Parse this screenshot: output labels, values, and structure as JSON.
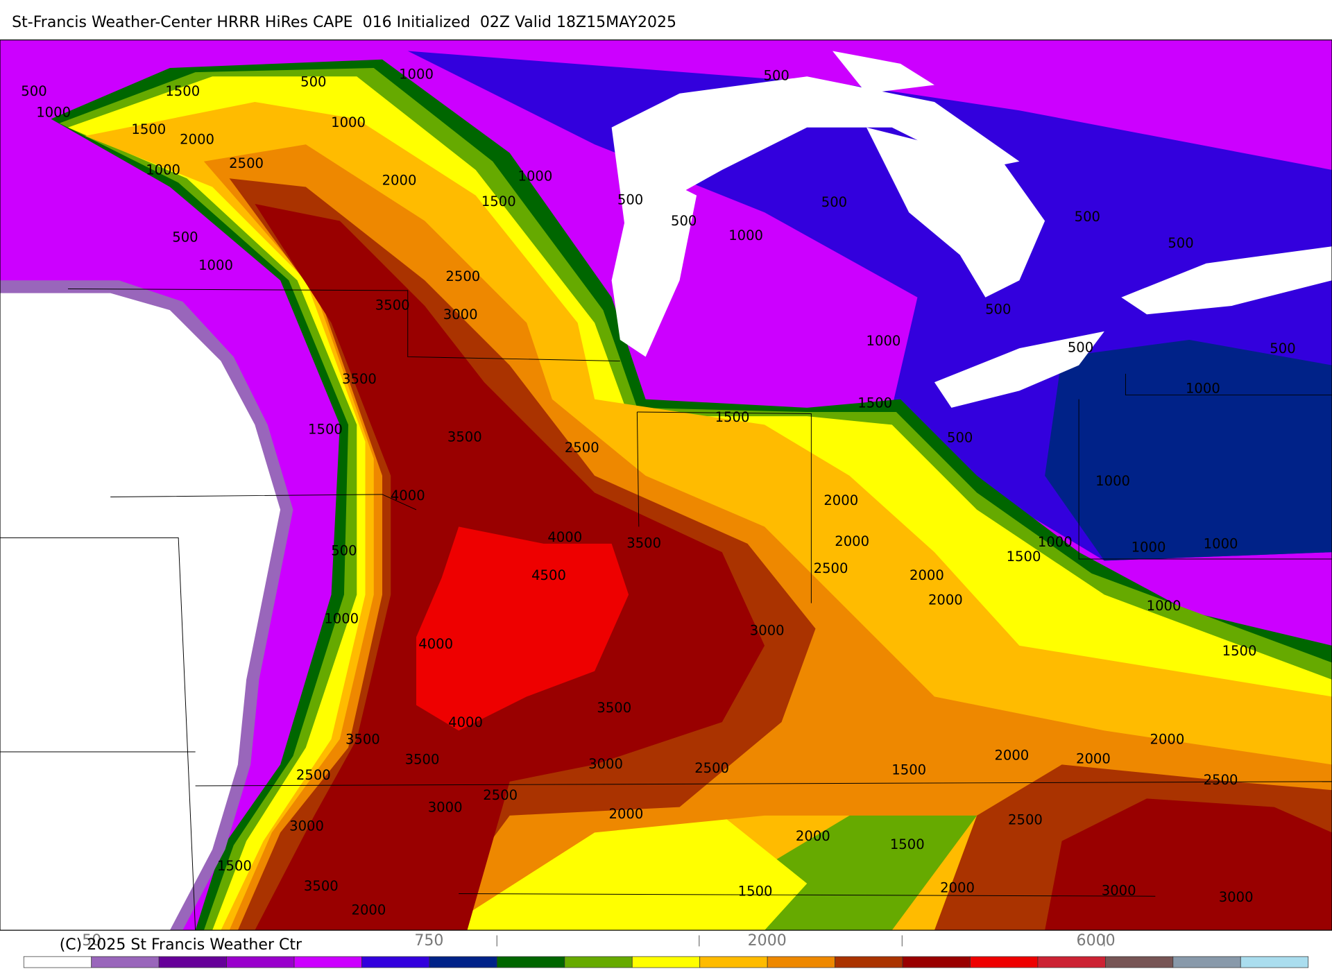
{
  "header": {
    "title": "St-Francis Weather-Center HRRR HiRes CAPE  016 Initialized  02Z Valid 18Z15MAY2025"
  },
  "contour_labels": [
    500,
    1000,
    1500,
    1500,
    2000,
    500,
    1000,
    500,
    1000,
    2500,
    1000,
    2000,
    1000,
    1500,
    500,
    500,
    500,
    500,
    500,
    500,
    1000,
    1000,
    2500,
    3500,
    3000,
    500,
    1000,
    500,
    500,
    3500,
    1000,
    1500,
    1500,
    1500,
    3500,
    500,
    2500,
    4000,
    2000,
    1000,
    4000,
    3500,
    2000,
    1000,
    1000,
    1000,
    500,
    1500,
    2500,
    4500,
    2000,
    2000,
    1000,
    1000,
    3000,
    4000,
    1500,
    3500,
    4000,
    3500,
    2000,
    2000,
    2000,
    3500,
    3000,
    2500,
    1500,
    2500,
    2500,
    2500,
    3000,
    2000,
    2500,
    3000,
    2000,
    1500,
    1500,
    3500,
    1500,
    2000,
    3000,
    3000,
    2000
  ],
  "colorbar": {
    "colors": [
      "#ffffff",
      "#9966bb",
      "#660099",
      "#9900cc",
      "#cc00ff",
      "#3300dd",
      "#002288",
      "#006600",
      "#66aa00",
      "#ffff00",
      "#ffbb00",
      "#ee8800",
      "#aa3300",
      "#990000",
      "#ee0000",
      "#cc2233",
      "#775555",
      "#8899aa",
      "#aaddee"
    ],
    "labels": [
      "50",
      "750",
      "2000",
      "6000"
    ]
  },
  "footer": {
    "copyright": "(C) 2025 St Francis Weather Ctr"
  }
}
